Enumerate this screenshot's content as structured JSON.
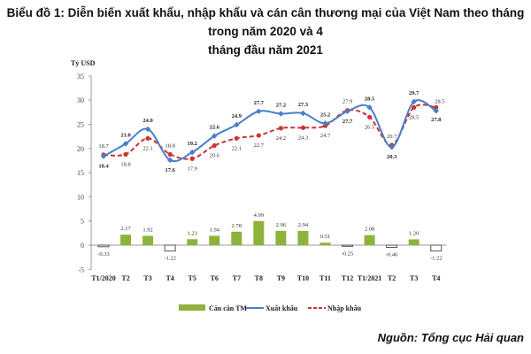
{
  "title_line1": "Biểu đồ 1: Diễn biến xuất khẩu, nhập khẩu và cán cân thương mại của Việt Nam theo tháng trong năm 2020 và 4",
  "title_line2": "tháng đầu năm 2021",
  "source": "Nguồn: Tổng cục Hải quan",
  "chart_data": {
    "type": "bar+line",
    "ylabel": "Tỷ USD",
    "ylim": [
      -5,
      35
    ],
    "yticks": [
      -5,
      0,
      5,
      10,
      15,
      20,
      25,
      30,
      35
    ],
    "grid": false,
    "legend_position": "bottom",
    "categories": [
      "T1/2020",
      "T2",
      "T3",
      "T4",
      "T5",
      "T6",
      "T7",
      "T8",
      "T9",
      "T10",
      "T11",
      "T12",
      "T1/2021",
      "T2",
      "T3",
      "T4"
    ],
    "series": [
      {
        "name": "Cán cân TM",
        "type": "bar",
        "color": "#8db33a",
        "values": [
          -0.33,
          2.17,
          1.92,
          -1.22,
          1.23,
          1.94,
          2.78,
          4.99,
          2.96,
          2.94,
          0.51,
          -0.25,
          2.08,
          -0.46,
          1.2,
          -1.22
        ]
      },
      {
        "name": "Xuất khẩu",
        "type": "line",
        "color": "#4a7fc9",
        "values": [
          18.4,
          21.0,
          24.0,
          17.6,
          19.2,
          22.6,
          24.9,
          27.7,
          27.2,
          27.3,
          25.2,
          27.7,
          28.5,
          20.3,
          29.7,
          27.8
        ]
      },
      {
        "name": "Nhập khẩu",
        "type": "line",
        "dashed": true,
        "color": "#cc3333",
        "values": [
          18.7,
          18.8,
          22.1,
          18.8,
          17.9,
          20.6,
          22.1,
          22.7,
          24.2,
          24.3,
          24.7,
          27.9,
          26.5,
          20.7,
          28.5,
          28.5
        ]
      }
    ]
  }
}
